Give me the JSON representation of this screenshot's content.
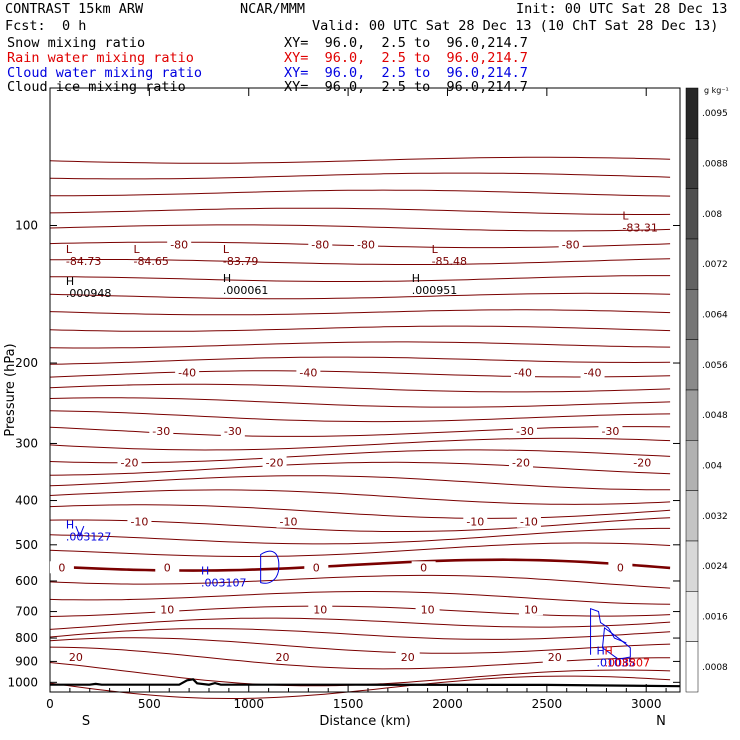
{
  "header": {
    "model": "CONTRAST 15km ARW",
    "org": "NCAR/MMM",
    "init": "Init: 00 UTC Sat 28 Dec 13",
    "fcst_label": "Fcst:",
    "fcst_value": "0 h",
    "valid": "Valid: 00 UTC Sat 28 Dec 13 (10 ChT Sat 28 Dec 13)"
  },
  "fields": [
    {
      "label": "Snow mixing ratio",
      "xy": "XY=  96.0,  2.5 to  96.0,214.7",
      "color": "#000000"
    },
    {
      "label": "Rain water mixing ratio",
      "xy": "XY=  96.0,  2.5 to  96.0,214.7",
      "color": "#e00000"
    },
    {
      "label": "Cloud water mixing ratio",
      "xy": "XY=  96.0,  2.5 to  96.0,214.7",
      "color": "#0000e0"
    },
    {
      "label": "Cloud ice mixing ratio",
      "xy": "XY=  96.0,  2.5 to  96.0,214.7",
      "color": "#000000"
    }
  ],
  "chart_data": {
    "type": "line",
    "title": "",
    "xlabel": "Distance (km)",
    "ylabel": "Pressure (hPa)",
    "xlim": [
      0,
      3170
    ],
    "ylim": [
      1050,
      50
    ],
    "y_scale": "log",
    "x_ticks": [
      0,
      500,
      1000,
      1500,
      2000,
      2500,
      3000
    ],
    "y_ticks": [
      100,
      200,
      300,
      400,
      500,
      600,
      700,
      800,
      900,
      1000
    ],
    "endpoints": {
      "left": "S",
      "right": "N"
    },
    "temperature_contours": [
      {
        "level": -80,
        "labels": [
          "-80",
          "-80",
          "-80",
          "-80"
        ]
      },
      {
        "level": -40,
        "labels": [
          "-40",
          "-40",
          "-40",
          "-40"
        ]
      },
      {
        "level": -30,
        "labels": [
          "-30",
          "-30",
          "-30",
          "-30"
        ]
      },
      {
        "level": -20,
        "labels": [
          "-20",
          "-20",
          "-20",
          "-20"
        ]
      },
      {
        "level": -10,
        "labels": [
          "-10",
          "-10",
          "-10",
          "-10"
        ]
      },
      {
        "level": 0,
        "labels": [
          "0",
          "0",
          "0",
          "0",
          "0"
        ]
      },
      {
        "level": 10,
        "labels": [
          "10",
          "10",
          "10",
          "10"
        ]
      },
      {
        "level": 20,
        "labels": [
          "20",
          "20",
          "20",
          "20"
        ]
      }
    ],
    "extrema": [
      {
        "type": "L",
        "value": "-84.73",
        "x": 80,
        "p": 115
      },
      {
        "type": "L",
        "value": "-84.65",
        "x": 420,
        "p": 115
      },
      {
        "type": "L",
        "value": "-83.79",
        "x": 870,
        "p": 115
      },
      {
        "type": "L",
        "value": "-85.48",
        "x": 1920,
        "p": 115
      },
      {
        "type": "L",
        "value": "-83.31",
        "x": 2880,
        "p": 97
      },
      {
        "type": "H",
        "value": ".000948",
        "x": 80,
        "p": 135,
        "field": "snow"
      },
      {
        "type": "H",
        "value": ".000061",
        "x": 870,
        "p": 133,
        "field": "snow"
      },
      {
        "type": "H",
        "value": ".000951",
        "x": 1820,
        "p": 133,
        "field": "snow"
      },
      {
        "type": "H",
        "value": ".003127",
        "x": 80,
        "p": 460,
        "field": "cloud"
      },
      {
        "type": "H",
        "value": ".003107",
        "x": 760,
        "p": 580,
        "field": "cloud"
      },
      {
        "type": "H",
        "value": ".01035",
        "x": 2750,
        "p": 870,
        "field": "cloud"
      },
      {
        "type": "H",
        "value": ".008807",
        "x": 2790,
        "p": 870,
        "field": "rain"
      }
    ],
    "colorbar": {
      "unit": "g kg⁻¹",
      "ticks": [
        ".0095",
        ".0088",
        ".008",
        ".0072",
        ".0064",
        ".0056",
        ".0048",
        ".004",
        ".0032",
        ".0024",
        ".0016",
        ".0008"
      ]
    },
    "colors": {
      "temperature": "#7a0000",
      "freezing": "#7a0000",
      "cloud": "#0000e0",
      "rain": "#e00000",
      "terrain": "#000000"
    }
  }
}
